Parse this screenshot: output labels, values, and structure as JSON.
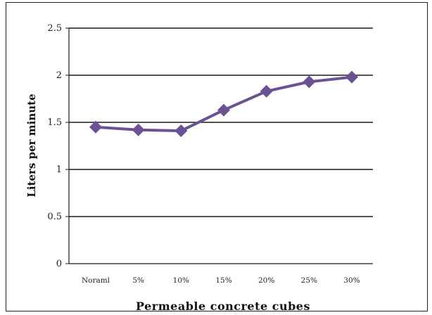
{
  "chart_data": {
    "type": "line",
    "title": "",
    "xlabel": "Permeable concrete cubes",
    "ylabel": "Liters per minute",
    "categories": [
      "Noraml",
      "5%",
      "10%",
      "15%",
      "20%",
      "25%",
      "30%"
    ],
    "series": [
      {
        "values": [
          1.45,
          1.42,
          1.41,
          1.63,
          1.83,
          1.93,
          1.98
        ]
      }
    ],
    "ylim": [
      0,
      2.5
    ],
    "yticks": [
      0,
      0.5,
      1,
      1.5,
      2,
      2.5
    ],
    "ytick_labels": [
      "0",
      "0.5",
      "1",
      "1.5",
      "2",
      "2.5"
    ],
    "grid": true,
    "legend": "none",
    "colors": {
      "line": "#6a5294",
      "marker": "#6a5294",
      "grid": "#1a1a1a"
    }
  }
}
